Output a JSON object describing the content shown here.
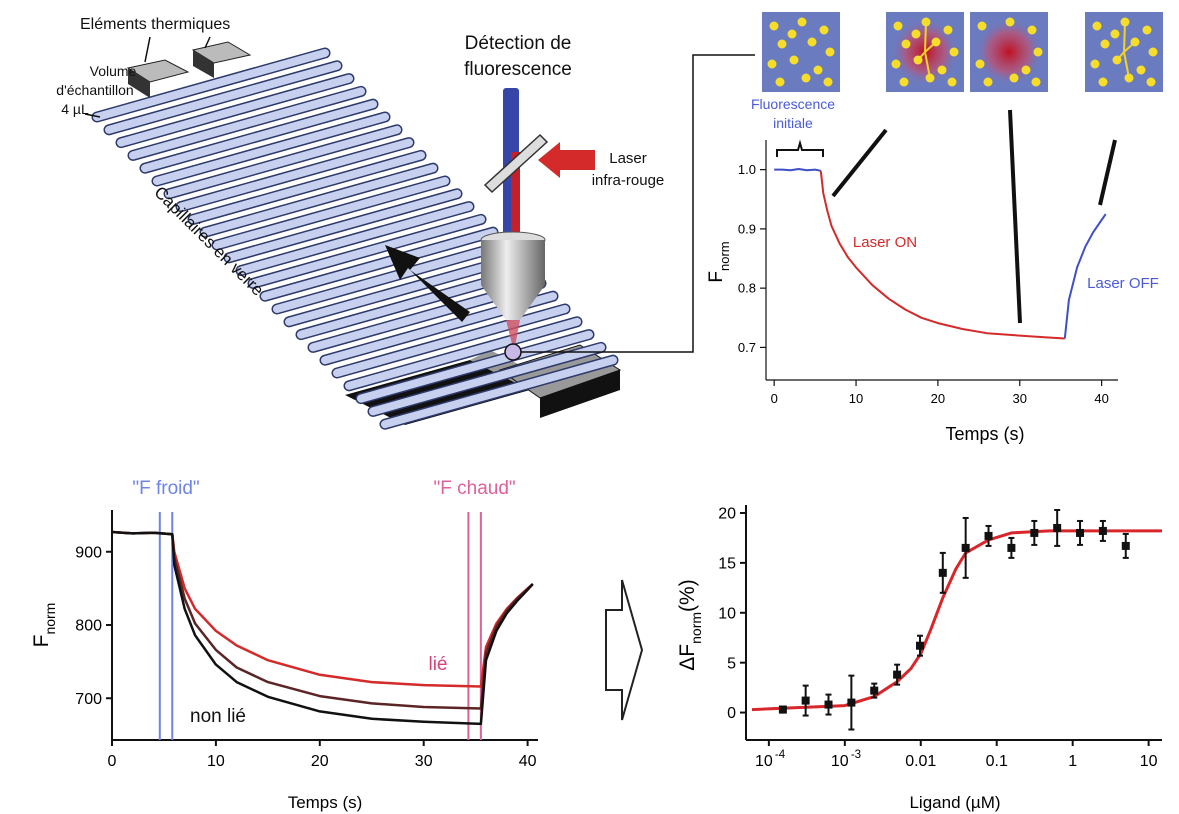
{
  "diagram": {
    "labels": {
      "thermal_elements": "Eléments thermiques",
      "sample_volume": [
        "Volume",
        "d'échantillon",
        "4 µL"
      ],
      "capillaries": "Capillaires en verre",
      "detection": [
        "Détection de",
        "fluorescence"
      ],
      "laser": [
        "Laser",
        "infra-rouge"
      ]
    }
  },
  "chart_data": [
    {
      "type": "line",
      "xlabel": "Temps (s)",
      "ylabel": "F",
      "ylabel_sub": "norm",
      "xlim": [
        -1,
        42
      ],
      "ylim": [
        0.645,
        1.05
      ],
      "xticks": [
        0,
        10,
        20,
        30,
        40
      ],
      "yticks": [
        0.7,
        0.8,
        0.9,
        {
          "value": 1,
          "label": "1.0"
        }
      ],
      "series": [
        {
          "color": "#3f4fc6",
          "x": [
            0,
            1,
            2,
            3,
            4,
            5,
            5.7
          ],
          "values": [
            1,
            1,
            0.999,
            1.001,
            0.999,
            1,
            0.998
          ]
        },
        {
          "color": "#d42a2a",
          "x": [
            5.7,
            6,
            6.5,
            7,
            8,
            9,
            10,
            12,
            14,
            16,
            18,
            20,
            23,
            26,
            30,
            33,
            35.5
          ],
          "values": [
            0.998,
            0.96,
            0.93,
            0.905,
            0.875,
            0.852,
            0.835,
            0.805,
            0.782,
            0.764,
            0.75,
            0.741,
            0.731,
            0.724,
            0.72,
            0.717,
            0.715
          ]
        },
        {
          "color": "#3f4fc6",
          "x": [
            35.5,
            36,
            37,
            38,
            39,
            40,
            40.5
          ],
          "values": [
            0.715,
            0.78,
            0.835,
            0.87,
            0.895,
            0.915,
            0.925
          ]
        }
      ],
      "annotations": [
        {
          "lines": [
            "Fluorescence",
            "initiale"
          ],
          "color": "#4a5ad8"
        },
        {
          "lines": [
            "Laser ON"
          ],
          "color": "#d42a2a"
        },
        {
          "lines": [
            "Laser OFF"
          ],
          "color": "#4a5ad8"
        }
      ]
    },
    {
      "type": "line",
      "xlabel": "Temps (s)",
      "ylabel": "F",
      "ylabel_sub": "norm",
      "xlim": [
        0,
        41
      ],
      "ylim": [
        643,
        957
      ],
      "xticks": [
        0,
        10,
        20,
        30,
        40
      ],
      "yticks": [
        700,
        800,
        900
      ],
      "series": [
        {
          "name": "lié",
          "color": "#d42a2a",
          "x": [
            0,
            2,
            4,
            5.8,
            6,
            7,
            8,
            10,
            12,
            15,
            20,
            25,
            30,
            35.5,
            36,
            37,
            38,
            39,
            40,
            40.5
          ],
          "values": [
            927,
            925,
            926,
            924,
            900,
            850,
            822,
            792,
            772,
            752,
            732,
            722,
            718,
            716,
            770,
            802,
            822,
            837,
            850,
            856
          ]
        },
        {
          "color": "#5c2525",
          "x": [
            0,
            2,
            4,
            5.8,
            6,
            7,
            8,
            10,
            12,
            15,
            20,
            25,
            30,
            35.5,
            36,
            37,
            38,
            39,
            40,
            40.5
          ],
          "values": [
            927,
            925,
            926,
            924,
            892,
            836,
            802,
            766,
            742,
            722,
            703,
            693,
            688,
            686,
            762,
            798,
            820,
            836,
            849,
            856
          ]
        },
        {
          "name": "non lié",
          "color": "#111111",
          "x": [
            0,
            2,
            4,
            5.8,
            6,
            7,
            8,
            10,
            12,
            15,
            20,
            25,
            30,
            35.5,
            36,
            37,
            38,
            39,
            40,
            40.5
          ],
          "values": [
            927,
            925,
            926,
            924,
            882,
            822,
            786,
            746,
            722,
            702,
            682,
            672,
            668,
            665,
            752,
            792,
            816,
            833,
            848,
            856
          ]
        }
      ],
      "markers": [
        {
          "label": "\"F froid\"",
          "color": "#6f84e6",
          "x": [
            4.6,
            5.8
          ]
        },
        {
          "label": "\"F chaud\"",
          "color": "#e0609a",
          "x": [
            34.3,
            35.5
          ]
        }
      ]
    },
    {
      "type": "scatter",
      "xlabel": "Ligand (µM)",
      "ylabel": "ΔF",
      "ylabel_sub": "norm",
      "ylabel_suffix": "(%)",
      "xscale": "log",
      "xlim": [
        5e-05,
        15
      ],
      "ylim": [
        -2.75,
        20.8
      ],
      "xticks": [
        {
          "value": 0.0001,
          "label": "10",
          "sup": "-4"
        },
        {
          "value": 0.001,
          "label": "10",
          "sup": "-3"
        },
        0.01,
        0.1,
        1,
        10
      ],
      "yticks": [
        0,
        5,
        10,
        15,
        20
      ],
      "series": [
        {
          "color": "#111111",
          "x": [
            0.000153,
            0.000305,
            0.00061,
            0.00122,
            0.00244,
            0.00488,
            0.00977,
            0.0195,
            0.039,
            0.078,
            0.156,
            0.3125,
            0.625,
            1.25,
            2.5,
            5
          ],
          "values": [
            0.3,
            1.2,
            0.8,
            1.0,
            2.2,
            3.8,
            6.7,
            14.0,
            16.5,
            17.7,
            16.5,
            18.0,
            18.5,
            18.0,
            18.2,
            16.7
          ],
          "errors": [
            0.3,
            1.5,
            1.0,
            2.7,
            0.7,
            1.0,
            1.0,
            2.0,
            3.0,
            1.0,
            1.0,
            1.2,
            1.8,
            1.2,
            1.0,
            1.2
          ]
        }
      ],
      "fit": {
        "color": "#d8262b",
        "x": [
          6e-05,
          0.001,
          0.00244,
          0.0049,
          0.0074,
          0.01,
          0.0135,
          0.0195,
          0.029,
          0.039,
          0.078,
          0.156,
          0.5,
          15
        ],
        "values": [
          0.3,
          0.7,
          1.6,
          3.1,
          4.4,
          5.9,
          8.3,
          11.5,
          14.4,
          16,
          17.3,
          18,
          18.2,
          18.2
        ]
      }
    }
  ]
}
